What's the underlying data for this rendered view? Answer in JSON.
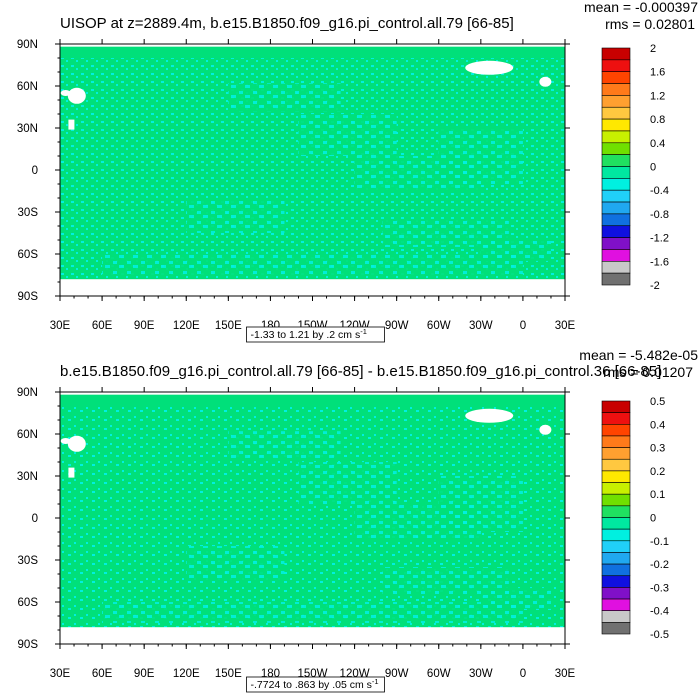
{
  "chart_data": [
    {
      "type": "heatmap",
      "title": "UISOP at z=2889.4m, b.e15.B1850.f09_g16.pi_control.all.79 [66-85]",
      "stats": [
        "mean = -0.000397",
        "rms = 0.02801"
      ],
      "x_tick_labels": [
        "30E",
        "60E",
        "90E",
        "120E",
        "150E",
        "180",
        "150W",
        "120W",
        "90W",
        "60W",
        "30W",
        "0",
        "30E"
      ],
      "y_tick_labels": [
        "90N",
        "60N",
        "30N",
        "0",
        "30S",
        "60S",
        "90S"
      ],
      "xlim": [
        30,
        390
      ],
      "ylim": [
        -90,
        90
      ],
      "contour_info": {
        "text": "-1.33 to 1.21 by .2 cm s",
        "sup": "-1"
      },
      "colorbar": {
        "labels": [
          "2",
          "1.6",
          "1.2",
          "0.8",
          "0.4",
          "0",
          "-0.4",
          "-0.8",
          "-1.2",
          "-1.6",
          "-2"
        ],
        "colors": [
          "#c80000",
          "#ee1010",
          "#ff4400",
          "#ff7a1a",
          "#ffa030",
          "#ffc840",
          "#ffe800",
          "#c8f000",
          "#70e000",
          "#20e060",
          "#00e8a0",
          "#00f0e0",
          "#20d0f8",
          "#20a8f0",
          "#1070e0",
          "#1010e0",
          "#8010c8",
          "#e010e0",
          "#c8c8c8",
          "#707070"
        ]
      },
      "field": {
        "dominant_range": [
          -0.4,
          0.4
        ],
        "masked_regions": "land areas shown in white"
      }
    },
    {
      "type": "heatmap",
      "title": "b.e15.B1850.f09_g16.pi_control.all.79 [66-85] - b.e15.B1850.f09_g16.pi_control.36 [66-85]",
      "stats": [
        "mean = -5.482e-05",
        "rms = 0.01207"
      ],
      "x_tick_labels": [
        "30E",
        "60E",
        "90E",
        "120E",
        "150E",
        "180",
        "150W",
        "120W",
        "90W",
        "60W",
        "30W",
        "0",
        "30E"
      ],
      "y_tick_labels": [
        "90N",
        "60N",
        "30N",
        "0",
        "30S",
        "60S",
        "90S"
      ],
      "xlim": [
        30,
        390
      ],
      "ylim": [
        -90,
        90
      ],
      "contour_info": {
        "text": "-.7724 to .863 by .05 cm s",
        "sup": "-1"
      },
      "colorbar": {
        "labels": [
          "0.5",
          "0.4",
          "0.3",
          "0.2",
          "0.1",
          "0",
          "-0.1",
          "-0.2",
          "-0.3",
          "-0.4",
          "-0.5"
        ],
        "colors": [
          "#c80000",
          "#ee1010",
          "#ff4400",
          "#ff7a1a",
          "#ffa030",
          "#ffc840",
          "#ffe800",
          "#c8f000",
          "#70e000",
          "#20e060",
          "#00e8a0",
          "#00f0e0",
          "#20d0f8",
          "#20a8f0",
          "#1070e0",
          "#1010e0",
          "#8010c8",
          "#e010e0",
          "#c8c8c8",
          "#707070"
        ]
      },
      "field": {
        "dominant_range": [
          -0.1,
          0.1
        ],
        "masked_regions": "land areas shown in white"
      }
    }
  ]
}
